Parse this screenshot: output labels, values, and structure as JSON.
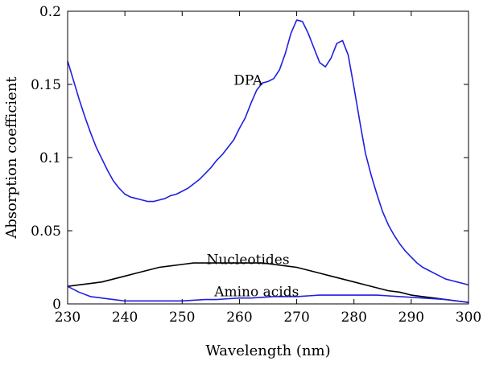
{
  "chart_data": {
    "type": "line",
    "title": "",
    "xlabel": "Wavelength (nm)",
    "ylabel": "Absorption coefficient",
    "xlim": [
      230,
      300
    ],
    "ylim": [
      0,
      0.2
    ],
    "xticks": [
      230,
      240,
      250,
      260,
      270,
      280,
      290,
      300
    ],
    "yticks": [
      0,
      0.05,
      0.1,
      0.15,
      0.2
    ],
    "xtick_labels": [
      "230",
      "240",
      "250",
      "260",
      "270",
      "280",
      "290",
      "300"
    ],
    "ytick_labels": [
      "0",
      "0.05",
      "0.1",
      "0.15",
      "0.2"
    ],
    "grid": false,
    "legend": "none",
    "annotations": [
      {
        "text": "DPA",
        "series": "DPA"
      },
      {
        "text": "Nucleotides",
        "series": "Nucleotides"
      },
      {
        "text": "Amino acids",
        "series": "Amino acids"
      }
    ],
    "series": [
      {
        "name": "DPA",
        "color": "#1f1fe0",
        "x": [
          230,
          231,
          232,
          233,
          234,
          235,
          236,
          237,
          238,
          239,
          240,
          241,
          242,
          243,
          244,
          245,
          246,
          247,
          248,
          249,
          250,
          251,
          252,
          253,
          254,
          255,
          256,
          257,
          258,
          259,
          260,
          261,
          262,
          263,
          264,
          265,
          266,
          267,
          268,
          269,
          270,
          271,
          272,
          273,
          274,
          275,
          276,
          277,
          278,
          279,
          280,
          281,
          282,
          283,
          284,
          285,
          286,
          287,
          288,
          289,
          290,
          291,
          292,
          293,
          294,
          295,
          296,
          297,
          298,
          299,
          300
        ],
        "y": [
          0.166,
          0.153,
          0.14,
          0.128,
          0.117,
          0.107,
          0.099,
          0.091,
          0.084,
          0.079,
          0.075,
          0.073,
          0.072,
          0.071,
          0.07,
          0.07,
          0.071,
          0.072,
          0.074,
          0.075,
          0.077,
          0.079,
          0.082,
          0.085,
          0.089,
          0.093,
          0.098,
          0.102,
          0.107,
          0.112,
          0.12,
          0.127,
          0.137,
          0.146,
          0.151,
          0.152,
          0.154,
          0.16,
          0.171,
          0.185,
          0.194,
          0.193,
          0.185,
          0.175,
          0.165,
          0.162,
          0.168,
          0.178,
          0.18,
          0.17,
          0.148,
          0.125,
          0.103,
          0.088,
          0.075,
          0.063,
          0.054,
          0.047,
          0.041,
          0.036,
          0.032,
          0.028,
          0.025,
          0.023,
          0.021,
          0.019,
          0.017,
          0.016,
          0.015,
          0.014,
          0.013
        ]
      },
      {
        "name": "Nucleotides",
        "color": "#000000",
        "x": [
          230,
          232,
          234,
          236,
          238,
          240,
          242,
          244,
          246,
          248,
          250,
          252,
          254,
          256,
          258,
          260,
          262,
          264,
          266,
          268,
          270,
          272,
          274,
          276,
          278,
          280,
          282,
          284,
          286,
          288,
          290,
          292,
          294,
          296,
          298,
          300
        ],
        "y": [
          0.012,
          0.013,
          0.014,
          0.015,
          0.017,
          0.019,
          0.021,
          0.023,
          0.025,
          0.026,
          0.027,
          0.028,
          0.028,
          0.028,
          0.028,
          0.028,
          0.028,
          0.028,
          0.027,
          0.026,
          0.025,
          0.023,
          0.021,
          0.019,
          0.017,
          0.015,
          0.013,
          0.011,
          0.009,
          0.008,
          0.006,
          0.005,
          0.004,
          0.003,
          0.002,
          0.001
        ]
      },
      {
        "name": "Amino acids",
        "color": "#1f1fe0",
        "x": [
          230,
          232,
          234,
          236,
          238,
          240,
          242,
          244,
          246,
          248,
          250,
          252,
          254,
          256,
          258,
          260,
          262,
          264,
          266,
          268,
          270,
          272,
          274,
          276,
          278,
          280,
          282,
          284,
          286,
          288,
          290,
          292,
          294,
          296,
          298,
          300
        ],
        "y": [
          0.012,
          0.008,
          0.005,
          0.004,
          0.003,
          0.002,
          0.002,
          0.002,
          0.002,
          0.002,
          0.002,
          0.0025,
          0.003,
          0.003,
          0.0035,
          0.004,
          0.004,
          0.0045,
          0.005,
          0.005,
          0.005,
          0.0055,
          0.006,
          0.006,
          0.006,
          0.006,
          0.006,
          0.006,
          0.0055,
          0.005,
          0.0045,
          0.004,
          0.0035,
          0.003,
          0.002,
          0.001
        ]
      }
    ]
  }
}
